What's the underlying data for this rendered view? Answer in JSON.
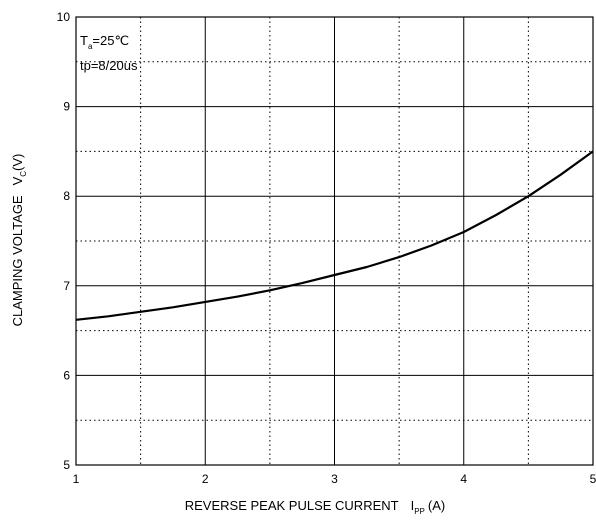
{
  "chart_data": {
    "type": "line",
    "xlabel": {
      "text": "REVERSE PEAK PULSE CURRENT",
      "symbol": "I",
      "subscript": "PP",
      "unit": "(A)"
    },
    "ylabel": {
      "text": "CLAMPING VOLTAGE",
      "symbol": "V",
      "subscript": "C",
      "unit": "(V)"
    },
    "xlim": [
      1,
      5
    ],
    "ylim": [
      5,
      10
    ],
    "x_major_ticks": [
      1,
      2,
      3,
      4,
      5
    ],
    "y_major_ticks": [
      5,
      6,
      7,
      8,
      9,
      10
    ],
    "x_minor_gridlines": [
      1.5,
      2.5,
      3.5,
      4.5
    ],
    "y_minor_gridlines": [
      5.5,
      6.5,
      7.5,
      8.5,
      9.5
    ],
    "grid": true,
    "minor_grid_style": "dotted",
    "annotations": {
      "ta_symbol": "T",
      "ta_subscript": "a",
      "ta_value": "=25℃",
      "tp": "tp=8/20us"
    },
    "series": [
      {
        "x": [
          1.0,
          1.25,
          1.5,
          1.75,
          2.0,
          2.25,
          2.5,
          2.75,
          3.0,
          3.25,
          3.5,
          3.75,
          4.0,
          4.25,
          4.5,
          4.75,
          5.0
        ],
        "y": [
          6.62,
          6.66,
          6.71,
          6.76,
          6.82,
          6.88,
          6.95,
          7.03,
          7.12,
          7.21,
          7.32,
          7.45,
          7.6,
          7.79,
          8.0,
          8.24,
          8.5
        ]
      }
    ]
  }
}
